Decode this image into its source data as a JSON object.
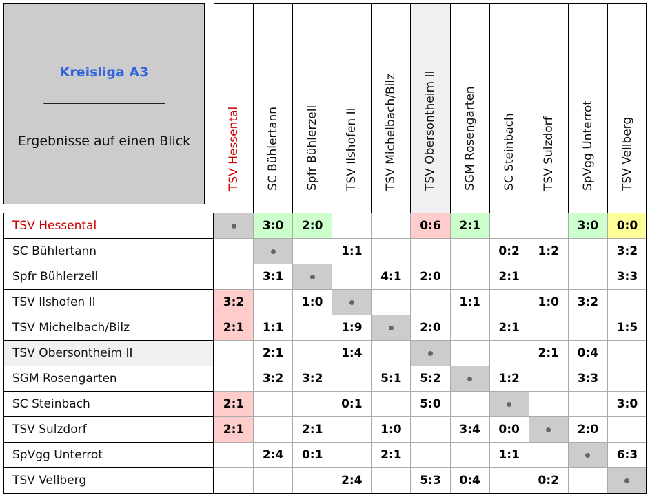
{
  "title": "Kreisliga A3",
  "separator": "_________________________",
  "subtitle": "Ergebnisse auf einen Blick",
  "colors": {
    "win": "#ccffcc",
    "loss": "#ffcccc",
    "draw": "#ffff99",
    "self": "#cccccc",
    "highlight_bg": "#f0f0f0",
    "highlight_team": "#cc0000",
    "title": "#3366dd"
  },
  "highlight_team_index": 0,
  "shaded_team_index": 5,
  "teams": [
    "TSV Hessental",
    "SC Bühlertann",
    "Spfr Bühlerzell",
    "TSV Ilshofen II",
    "TSV Michelbach/Bilz",
    "TSV Obersontheim II",
    "SGM Rosengarten",
    "SC Steinbach",
    "TSV Sulzdorf",
    "SpVgg Unterrot",
    "TSV Vellberg"
  ],
  "results": [
    [
      "•",
      "3:0",
      "2:0",
      "",
      "",
      "0:6",
      "2:1",
      "",
      "",
      "3:0",
      "0:0"
    ],
    [
      "",
      "•",
      "",
      "1:1",
      "",
      "",
      "",
      "0:2",
      "1:2",
      "",
      "3:2"
    ],
    [
      "",
      "3:1",
      "•",
      "",
      "4:1",
      "2:0",
      "",
      "2:1",
      "",
      "",
      "3:3"
    ],
    [
      "3:2",
      "",
      "1:0",
      "•",
      "",
      "",
      "1:1",
      "",
      "1:0",
      "3:2",
      ""
    ],
    [
      "2:1",
      "1:1",
      "",
      "1:9",
      "•",
      "2:0",
      "",
      "2:1",
      "",
      "",
      "1:5"
    ],
    [
      "",
      "2:1",
      "",
      "1:4",
      "",
      "•",
      "",
      "",
      "2:1",
      "0:4",
      ""
    ],
    [
      "",
      "3:2",
      "3:2",
      "",
      "5:1",
      "5:2",
      "•",
      "1:2",
      "",
      "3:3",
      ""
    ],
    [
      "2:1",
      "",
      "",
      "0:1",
      "",
      "5:0",
      "",
      "•",
      "",
      "",
      "3:0"
    ],
    [
      "2:1",
      "",
      "2:1",
      "",
      "1:0",
      "",
      "3:4",
      "0:0",
      "•",
      "2:0",
      ""
    ],
    [
      "",
      "2:4",
      "0:1",
      "",
      "2:1",
      "",
      "",
      "1:1",
      "",
      "•",
      "6:3"
    ],
    [
      "",
      "",
      "",
      "2:4",
      "",
      "5:3",
      "0:4",
      "",
      "0:2",
      "",
      "•"
    ]
  ],
  "cell_highlights": [
    [
      "self",
      "win",
      "win",
      "",
      "",
      "loss",
      "win",
      "",
      "",
      "win",
      "draw"
    ],
    [
      "",
      "self",
      "",
      "",
      "",
      "",
      "",
      "",
      "",
      "",
      ""
    ],
    [
      "",
      "",
      "self",
      "",
      "",
      "",
      "",
      "",
      "",
      "",
      ""
    ],
    [
      "loss",
      "",
      "",
      "self",
      "",
      "",
      "",
      "",
      "",
      "",
      ""
    ],
    [
      "loss",
      "",
      "",
      "",
      "self",
      "",
      "",
      "",
      "",
      "",
      ""
    ],
    [
      "",
      "",
      "",
      "",
      "",
      "self",
      "",
      "",
      "",
      "",
      ""
    ],
    [
      "",
      "",
      "",
      "",
      "",
      "",
      "self",
      "",
      "",
      "",
      ""
    ],
    [
      "loss",
      "",
      "",
      "",
      "",
      "",
      "",
      "self",
      "",
      "",
      ""
    ],
    [
      "loss",
      "",
      "",
      "",
      "",
      "",
      "",
      "",
      "self",
      "",
      ""
    ],
    [
      "",
      "",
      "",
      "",
      "",
      "",
      "",
      "",
      "",
      "self",
      ""
    ],
    [
      "",
      "",
      "",
      "",
      "",
      "",
      "",
      "",
      "",
      "",
      "self"
    ]
  ]
}
